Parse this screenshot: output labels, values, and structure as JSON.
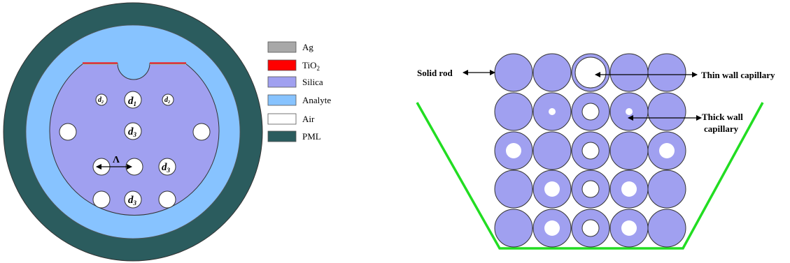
{
  "legend": {
    "items": [
      {
        "label": "Ag",
        "color": "#a8a8a8"
      },
      {
        "label": "TiO",
        "sub": "2",
        "color": "#ff0000"
      },
      {
        "label": "Silica",
        "color": "#a0a0f0"
      },
      {
        "label": "Analyte",
        "color": "#87c3ff"
      },
      {
        "label": "Air",
        "color": "#ffffff"
      },
      {
        "label": "PML",
        "color": "#2b5c5e"
      }
    ]
  },
  "fiber_labels": {
    "d1": "d",
    "d1_sub": "1",
    "d2": "d",
    "d2_sub": "2",
    "d3": "d",
    "d3_sub": "3",
    "lambda": "Λ"
  },
  "stack_labels": {
    "solid_rod": "Solid rod",
    "thin_wall": "Thin wall capillary",
    "thick_wall_1": "Thick wall",
    "thick_wall_2": "capillary"
  },
  "colors": {
    "pml": "#2b5c5e",
    "analyte": "#87c3ff",
    "silica": "#a0a0f0",
    "tio2": "#ff0000",
    "ag": "#a8a8a8",
    "preform": "#22dd22"
  }
}
